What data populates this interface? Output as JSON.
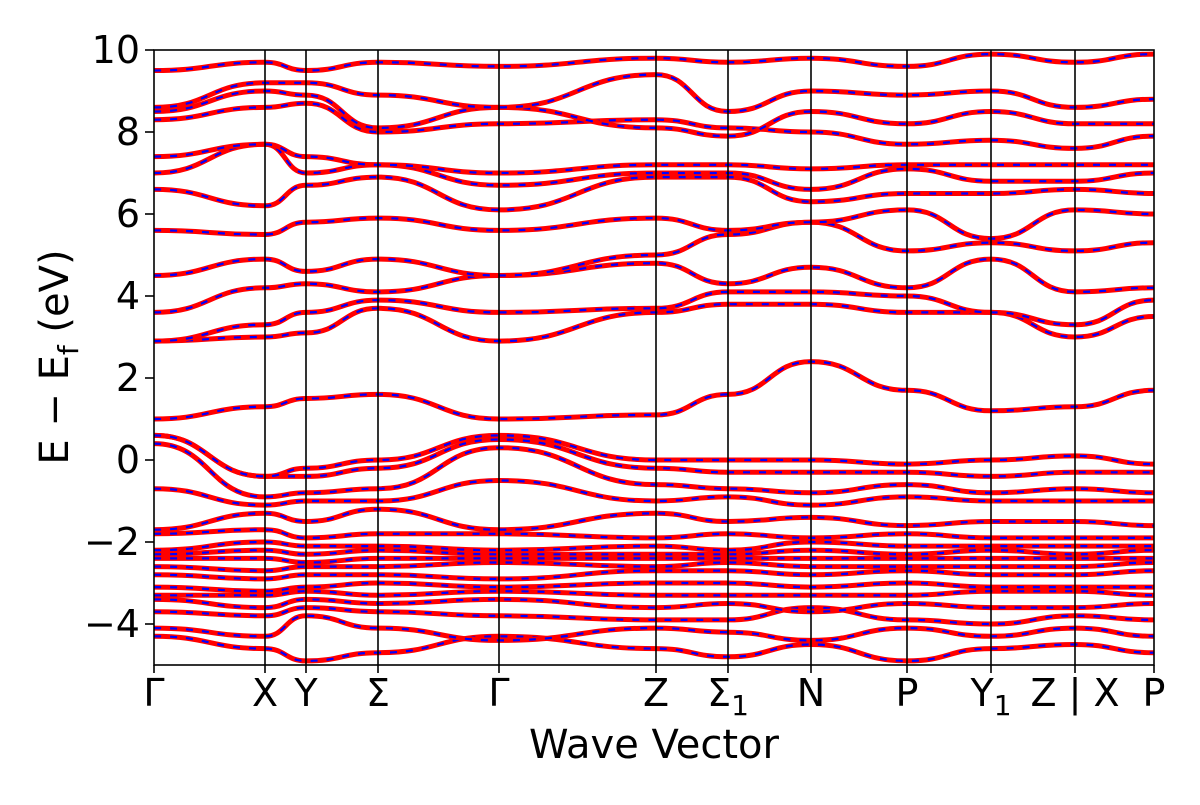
{
  "chart_data": {
    "type": "line",
    "title": "",
    "xlabel": "Wave Vector",
    "ylabel": "E − E",
    "ylabel_sub": "f",
    "ylabel_unit": " (eV)",
    "ylim": [
      -5,
      10
    ],
    "yticks": [
      {
        "value": 10,
        "label": "10"
      },
      {
        "value": 8,
        "label": "8"
      },
      {
        "value": 6,
        "label": "6"
      },
      {
        "value": 4,
        "label": "4"
      },
      {
        "value": 2,
        "label": "2"
      },
      {
        "value": 0,
        "label": "0"
      },
      {
        "value": -2,
        "label": "−2"
      },
      {
        "value": -4,
        "label": "−4"
      }
    ],
    "kpath": [
      {
        "label": "Γ",
        "sub": "",
        "k": 0.0
      },
      {
        "label": "X",
        "sub": "",
        "k": 1.11
      },
      {
        "label": "Y",
        "sub": "",
        "k": 1.52
      },
      {
        "label": "Σ",
        "sub": "",
        "k": 2.24
      },
      {
        "label": "Γ",
        "sub": "",
        "k": 3.45
      },
      {
        "label": "Z",
        "sub": "",
        "k": 5.02
      },
      {
        "label": "Σ",
        "sub": "1",
        "k": 5.74
      },
      {
        "label": "N",
        "sub": "",
        "k": 6.57
      },
      {
        "label": "P",
        "sub": "",
        "k": 7.53
      },
      {
        "label": "Y",
        "sub": "1",
        "k": 8.37
      },
      {
        "label": "Z | X",
        "sub": "",
        "k": 9.21
      },
      {
        "label": "P",
        "sub": "",
        "k": 10.0
      }
    ],
    "series_style": {
      "color_primary": "#ff0000",
      "color_secondary": "#0000ff",
      "secondary_style": "dotted overlay"
    },
    "series": [
      {
        "values": [
          -4.3,
          -4.6,
          -4.9,
          -4.7,
          -4.3,
          -4.6,
          -4.8,
          -4.5,
          -4.9,
          -4.6,
          -4.5,
          -4.7
        ]
      },
      {
        "values": [
          -4.1,
          -4.3,
          -3.8,
          -4.1,
          -4.4,
          -4.1,
          -4.2,
          -4.4,
          -4.1,
          -4.3,
          -4.1,
          -4.3
        ]
      },
      {
        "values": [
          -3.7,
          -3.8,
          -3.6,
          -3.7,
          -3.8,
          -3.9,
          -3.9,
          -3.6,
          -3.9,
          -4.0,
          -3.8,
          -3.9
        ]
      },
      {
        "values": [
          -3.4,
          -3.6,
          -3.4,
          -3.5,
          -3.4,
          -3.6,
          -3.5,
          -3.7,
          -3.5,
          -3.6,
          -3.6,
          -3.5
        ]
      },
      {
        "values": [
          -3.3,
          -3.3,
          -3.2,
          -3.3,
          -3.2,
          -3.3,
          -3.3,
          -3.3,
          -3.3,
          -3.2,
          -3.2,
          -3.3
        ]
      },
      {
        "values": [
          -3.1,
          -3.2,
          -3.1,
          -3.0,
          -3.1,
          -3.0,
          -3.0,
          -3.1,
          -3.0,
          -3.1,
          -3.1,
          -3.1
        ]
      },
      {
        "values": [
          -2.8,
          -2.9,
          -2.8,
          -2.8,
          -2.9,
          -2.7,
          -2.7,
          -2.8,
          -2.7,
          -2.8,
          -2.8,
          -2.7
        ]
      },
      {
        "values": [
          -2.6,
          -2.7,
          -2.6,
          -2.6,
          -2.5,
          -2.6,
          -2.5,
          -2.6,
          -2.6,
          -2.6,
          -2.6,
          -2.5
        ]
      },
      {
        "values": [
          -2.4,
          -2.4,
          -2.5,
          -2.4,
          -2.4,
          -2.4,
          -2.4,
          -2.4,
          -2.4,
          -2.4,
          -2.4,
          -2.4
        ]
      },
      {
        "values": [
          -2.3,
          -2.2,
          -2.3,
          -2.2,
          -2.3,
          -2.3,
          -2.3,
          -2.2,
          -2.3,
          -2.2,
          -2.3,
          -2.2
        ]
      },
      {
        "values": [
          -2.2,
          -2.0,
          -2.1,
          -2.1,
          -2.2,
          -2.1,
          -2.2,
          -2.0,
          -2.1,
          -2.1,
          -2.1,
          -2.1
        ]
      },
      {
        "values": [
          -1.8,
          -1.7,
          -1.9,
          -1.8,
          -1.8,
          -1.9,
          -1.8,
          -1.9,
          -1.8,
          -1.9,
          -1.9,
          -1.9
        ]
      },
      {
        "values": [
          -1.7,
          -1.3,
          -1.5,
          -1.2,
          -1.7,
          -1.3,
          -1.5,
          -1.4,
          -1.6,
          -1.5,
          -1.5,
          -1.6
        ]
      },
      {
        "values": [
          -0.7,
          -1.1,
          -1.0,
          -1.0,
          -0.5,
          -1.0,
          -0.9,
          -1.1,
          -0.9,
          -1.0,
          -1.0,
          -1.0
        ]
      },
      {
        "values": [
          0.4,
          -0.9,
          -0.8,
          -0.7,
          0.3,
          -0.6,
          -0.7,
          -0.8,
          -0.6,
          -0.8,
          -0.7,
          -0.8
        ]
      },
      {
        "values": [
          0.6,
          -0.4,
          -0.4,
          -0.2,
          0.5,
          -0.2,
          -0.3,
          -0.3,
          -0.3,
          -0.4,
          -0.3,
          -0.3
        ]
      },
      {
        "values": [
          0.6,
          -0.4,
          -0.2,
          0.0,
          0.6,
          0.0,
          0.0,
          0.0,
          -0.1,
          0.0,
          0.1,
          -0.1
        ]
      },
      {
        "values": [
          1.0,
          1.3,
          1.5,
          1.6,
          1.0,
          1.1,
          1.6,
          2.4,
          1.7,
          1.2,
          1.3,
          1.7
        ]
      },
      {
        "values": [
          2.9,
          3.0,
          3.1,
          3.7,
          2.9,
          3.6,
          3.8,
          3.8,
          3.6,
          3.6,
          3.0,
          3.5
        ]
      },
      {
        "values": [
          2.9,
          3.3,
          3.6,
          3.9,
          3.6,
          3.7,
          4.1,
          4.1,
          4.0,
          3.6,
          3.3,
          3.9
        ]
      },
      {
        "values": [
          3.6,
          4.2,
          4.3,
          4.1,
          4.5,
          4.8,
          4.3,
          4.7,
          4.2,
          4.9,
          4.1,
          4.2
        ]
      },
      {
        "values": [
          4.5,
          4.9,
          4.6,
          4.9,
          4.5,
          5.0,
          5.5,
          5.8,
          5.1,
          5.3,
          5.1,
          5.3
        ]
      },
      {
        "values": [
          5.6,
          5.5,
          5.8,
          5.9,
          5.6,
          5.9,
          5.6,
          5.8,
          6.1,
          5.4,
          6.1,
          6.0
        ]
      },
      {
        "values": [
          6.6,
          6.2,
          6.7,
          6.9,
          6.1,
          6.9,
          6.9,
          6.3,
          6.5,
          6.5,
          6.6,
          6.5
        ]
      },
      {
        "values": [
          7.0,
          7.7,
          7.0,
          7.2,
          6.7,
          7.0,
          7.0,
          6.6,
          7.1,
          6.8,
          6.8,
          7.0
        ]
      },
      {
        "values": [
          7.4,
          7.7,
          7.4,
          7.2,
          7.0,
          7.2,
          7.2,
          7.1,
          7.2,
          7.2,
          7.2,
          7.2
        ]
      },
      {
        "values": [
          8.3,
          8.6,
          8.7,
          8.0,
          8.2,
          8.3,
          8.1,
          8.0,
          7.7,
          7.8,
          7.6,
          7.9
        ]
      },
      {
        "values": [
          8.5,
          9.0,
          8.9,
          8.1,
          8.6,
          8.1,
          7.9,
          8.5,
          8.2,
          8.5,
          8.2,
          8.2
        ]
      },
      {
        "values": [
          8.6,
          9.2,
          9.2,
          8.9,
          8.6,
          9.4,
          8.5,
          9.0,
          8.9,
          9.0,
          8.6,
          8.8
        ]
      },
      {
        "values": [
          9.5,
          9.7,
          9.5,
          9.7,
          9.6,
          9.8,
          9.7,
          9.8,
          9.6,
          9.9,
          9.7,
          9.9
        ]
      }
    ]
  }
}
